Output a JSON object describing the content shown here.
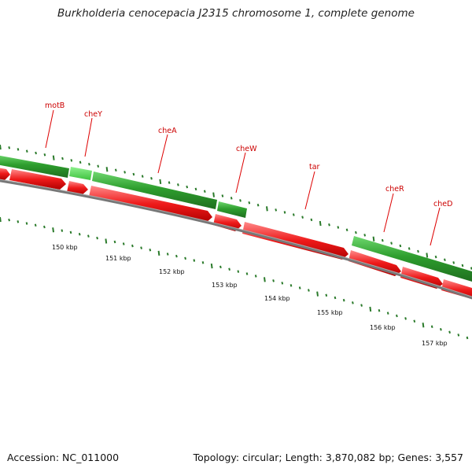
{
  "title": "Burkholderia cenocepacia J2315 chromosome 1, complete genome",
  "colors": {
    "gc_dot": "#2a7a2a",
    "forward_gene": "#2e9e2e",
    "forward_gene_alt": "#5ddc5d",
    "reverse_gene": "#e81010",
    "backbone": "#777777",
    "label": "#cc0000"
  },
  "genes": [
    {
      "name": "motB",
      "strand": "forward"
    },
    {
      "name": "cheY",
      "strand": "forward"
    },
    {
      "name": "cheA",
      "strand": "forward"
    },
    {
      "name": "cheW",
      "strand": "forward"
    },
    {
      "name": "tar",
      "strand": "reverse"
    },
    {
      "name": "cheR",
      "strand": "forward"
    },
    {
      "name": "cheD",
      "strand": "forward"
    }
  ],
  "scale_labels": [
    "150 kbp",
    "151 kbp",
    "152 kbp",
    "153 kbp",
    "154 kbp",
    "155 kbp",
    "156 kbp",
    "157 kbp"
  ],
  "footer": {
    "accession": "Accession: NC_011000",
    "summary": "Topology: circular; Length: 3,870,082 bp; Genes: 3,557"
  }
}
